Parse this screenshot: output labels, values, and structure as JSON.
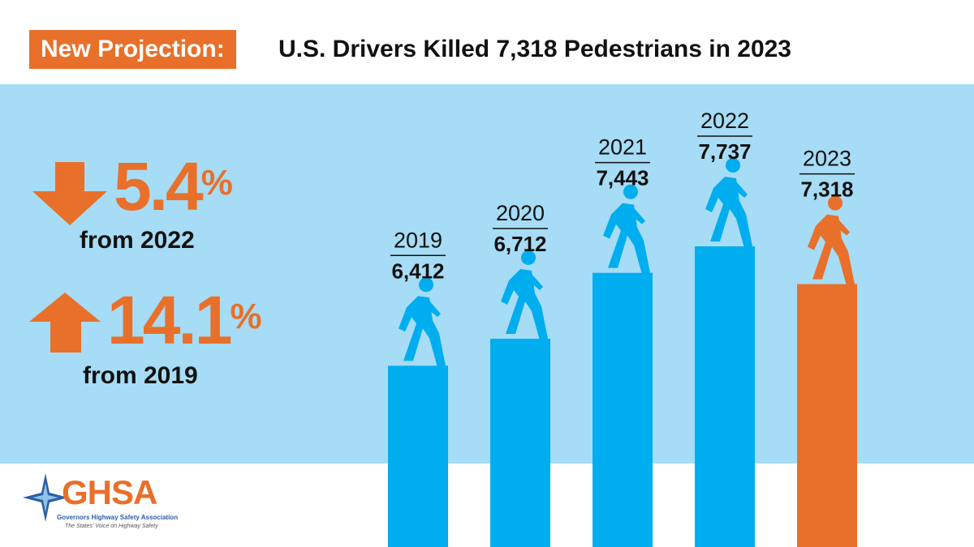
{
  "header": {
    "badge": "New Projection:",
    "title": "U.S. Drivers Killed 7,318 Pedestrians in 2023"
  },
  "stats": [
    {
      "direction": "down",
      "value": "5.4",
      "unit": "%",
      "caption": "from 2022",
      "icon": "arrow-down-icon"
    },
    {
      "direction": "up",
      "value": "14.1",
      "unit": "%",
      "caption": "from 2019",
      "icon": "arrow-up-icon"
    }
  ],
  "logo": {
    "name": "GHSA",
    "org": "Governors Highway Safety Association",
    "tagline": "The States' Voice on Highway Safety"
  },
  "colors": {
    "accent": "#e8702a",
    "bar": "#00aeef",
    "band": "#a6dcf5"
  },
  "chart_data": {
    "type": "bar",
    "categories": [
      "2019",
      "2020",
      "2021",
      "2022",
      "2023"
    ],
    "values": [
      6412,
      6712,
      7443,
      7737,
      7318
    ],
    "value_labels": [
      "6,412",
      "6,712",
      "7,443",
      "7,737",
      "7,318"
    ],
    "highlight": "2023",
    "title": "U.S. Drivers Killed 7,318 Pedestrians in 2023",
    "icon": "pedestrian-icon"
  }
}
